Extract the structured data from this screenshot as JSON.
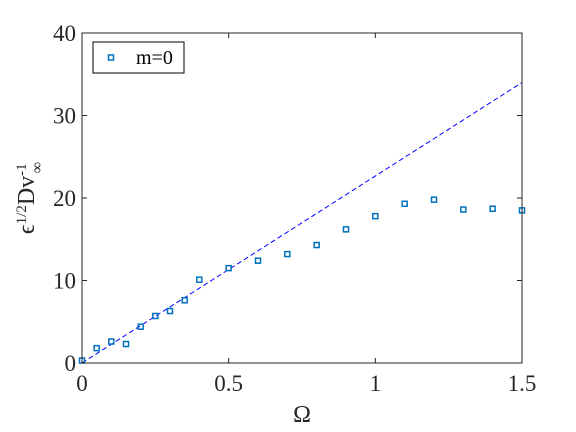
{
  "chart_data": {
    "type": "scatter",
    "xlabel": "Ω",
    "ylabel": {
      "epsilon": "ϵ",
      "epsilon_exponent": "1/2",
      "main": "Dv",
      "exponent": "-1",
      "subscript": "∞"
    },
    "xlim": [
      0,
      1.5
    ],
    "ylim": [
      0,
      40
    ],
    "x_ticks": [
      0,
      0.5,
      1,
      1.5
    ],
    "x_tick_labels": [
      "0",
      "0.5",
      "1",
      "1.5"
    ],
    "y_ticks": [
      0,
      10,
      20,
      30,
      40
    ],
    "y_tick_labels": [
      "0",
      "10",
      "20",
      "30",
      "40"
    ],
    "grid": false,
    "legend_position": "top-left",
    "series": [
      {
        "name": "m=0",
        "marker": "open-square",
        "color": "#0072BD",
        "x": [
          0.0,
          0.05,
          0.1,
          0.15,
          0.2,
          0.25,
          0.3,
          0.35,
          0.4,
          0.5,
          0.6,
          0.7,
          0.8,
          0.9,
          1.0,
          1.1,
          1.2,
          1.3,
          1.4,
          1.5
        ],
        "y": [
          0.3,
          1.8,
          2.6,
          2.3,
          4.4,
          5.7,
          6.3,
          7.6,
          10.1,
          11.5,
          12.4,
          13.2,
          14.3,
          16.2,
          17.8,
          19.3,
          19.8,
          18.6,
          18.7,
          18.5
        ]
      },
      {
        "marker": "none",
        "line": "dashed",
        "color": "#0000FF",
        "x": [
          0,
          1.5
        ],
        "y": [
          0,
          34
        ]
      }
    ]
  }
}
